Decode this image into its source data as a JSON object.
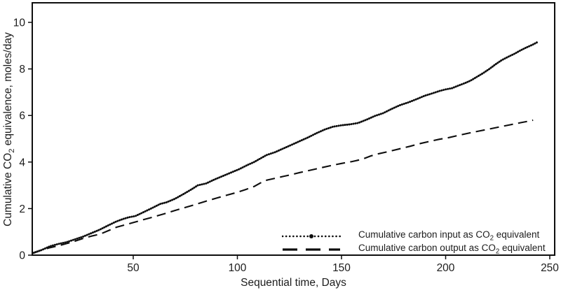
{
  "figure": {
    "background": "#ffffff",
    "line_color": "#0e0e0e",
    "text_color": "#1c1c1c"
  },
  "y_axis": {
    "label_prefix": "Cumulative CO",
    "label_sub": "2",
    "label_suffix": " equivalence, moles/day"
  },
  "x_axis": {
    "label": "Sequential time, Days"
  },
  "legend": {
    "items": [
      {
        "marker": "dotted-line-with-center-dot",
        "text_prefix": "Cumulative carbon input as CO",
        "text_sub": "2",
        "text_suffix": " equivalent"
      },
      {
        "marker": "dashed-line",
        "text_prefix": "Cumulative carbon output as CO",
        "text_sub": "2",
        "text_suffix": " equivalent"
      }
    ]
  },
  "chart_data": {
    "type": "line",
    "title": "",
    "xlabel": "Sequential time, Days",
    "ylabel": "Cumulative CO2 equivalence, moles/day",
    "xlim": [
      0,
      255
    ],
    "ylim": [
      0,
      10.9
    ],
    "x_ticks": [
      50,
      100,
      150,
      200,
      250
    ],
    "y_ticks": [
      0,
      2,
      4,
      6,
      8,
      10
    ],
    "grid": false,
    "legend_position": "inside lower right",
    "series": [
      {
        "name": "Cumulative carbon input as CO2 equivalent",
        "style": "dotted",
        "points": [
          [
            2,
            0.1
          ],
          [
            6,
            0.22
          ],
          [
            10,
            0.38
          ],
          [
            14,
            0.48
          ],
          [
            18,
            0.56
          ],
          [
            22,
            0.68
          ],
          [
            26,
            0.8
          ],
          [
            30,
            0.95
          ],
          [
            34,
            1.1
          ],
          [
            38,
            1.28
          ],
          [
            42,
            1.45
          ],
          [
            45,
            1.55
          ],
          [
            48,
            1.63
          ],
          [
            51,
            1.68
          ],
          [
            55,
            1.85
          ],
          [
            59,
            2.02
          ],
          [
            63,
            2.2
          ],
          [
            66,
            2.27
          ],
          [
            70,
            2.42
          ],
          [
            74,
            2.62
          ],
          [
            78,
            2.83
          ],
          [
            81,
            3.0
          ],
          [
            85,
            3.08
          ],
          [
            89,
            3.25
          ],
          [
            93,
            3.4
          ],
          [
            97,
            3.55
          ],
          [
            101,
            3.7
          ],
          [
            105,
            3.88
          ],
          [
            108,
            4.0
          ],
          [
            111,
            4.15
          ],
          [
            114,
            4.3
          ],
          [
            118,
            4.42
          ],
          [
            122,
            4.58
          ],
          [
            126,
            4.74
          ],
          [
            130,
            4.9
          ],
          [
            134,
            5.06
          ],
          [
            138,
            5.24
          ],
          [
            142,
            5.4
          ],
          [
            146,
            5.52
          ],
          [
            150,
            5.58
          ],
          [
            154,
            5.62
          ],
          [
            158,
            5.68
          ],
          [
            162,
            5.82
          ],
          [
            166,
            5.98
          ],
          [
            170,
            6.1
          ],
          [
            174,
            6.28
          ],
          [
            178,
            6.44
          ],
          [
            182,
            6.56
          ],
          [
            186,
            6.7
          ],
          [
            190,
            6.85
          ],
          [
            194,
            6.96
          ],
          [
            197,
            7.05
          ],
          [
            200,
            7.12
          ],
          [
            203,
            7.17
          ],
          [
            206,
            7.28
          ],
          [
            209,
            7.38
          ],
          [
            212,
            7.5
          ],
          [
            215,
            7.66
          ],
          [
            218,
            7.82
          ],
          [
            221,
            8.0
          ],
          [
            224,
            8.2
          ],
          [
            227,
            8.38
          ],
          [
            230,
            8.52
          ],
          [
            233,
            8.65
          ],
          [
            236,
            8.8
          ],
          [
            239,
            8.93
          ],
          [
            242,
            9.05
          ],
          [
            244,
            9.15
          ]
        ]
      },
      {
        "name": "Cumulative carbon output as CO2 equivalent",
        "style": "dashed",
        "points": [
          [
            2,
            0.08
          ],
          [
            6,
            0.22
          ],
          [
            10,
            0.32
          ],
          [
            14,
            0.4
          ],
          [
            18,
            0.5
          ],
          [
            22,
            0.6
          ],
          [
            26,
            0.72
          ],
          [
            30,
            0.82
          ],
          [
            34,
            0.9
          ],
          [
            38,
            1.05
          ],
          [
            42,
            1.2
          ],
          [
            46,
            1.3
          ],
          [
            50,
            1.4
          ],
          [
            55,
            1.53
          ],
          [
            60,
            1.65
          ],
          [
            65,
            1.78
          ],
          [
            70,
            1.92
          ],
          [
            75,
            2.05
          ],
          [
            80,
            2.18
          ],
          [
            85,
            2.32
          ],
          [
            90,
            2.45
          ],
          [
            95,
            2.58
          ],
          [
            100,
            2.7
          ],
          [
            104,
            2.82
          ],
          [
            108,
            2.95
          ],
          [
            111,
            3.1
          ],
          [
            114,
            3.22
          ],
          [
            118,
            3.3
          ],
          [
            122,
            3.38
          ],
          [
            126,
            3.46
          ],
          [
            130,
            3.55
          ],
          [
            135,
            3.65
          ],
          [
            140,
            3.75
          ],
          [
            145,
            3.85
          ],
          [
            150,
            3.94
          ],
          [
            155,
            4.02
          ],
          [
            160,
            4.12
          ],
          [
            164,
            4.26
          ],
          [
            168,
            4.36
          ],
          [
            173,
            4.46
          ],
          [
            178,
            4.57
          ],
          [
            183,
            4.68
          ],
          [
            188,
            4.8
          ],
          [
            193,
            4.9
          ],
          [
            197,
            4.98
          ],
          [
            201,
            5.04
          ],
          [
            206,
            5.14
          ],
          [
            211,
            5.24
          ],
          [
            216,
            5.33
          ],
          [
            221,
            5.42
          ],
          [
            226,
            5.51
          ],
          [
            231,
            5.6
          ],
          [
            236,
            5.69
          ],
          [
            240,
            5.76
          ],
          [
            242,
            5.8
          ]
        ]
      }
    ]
  }
}
